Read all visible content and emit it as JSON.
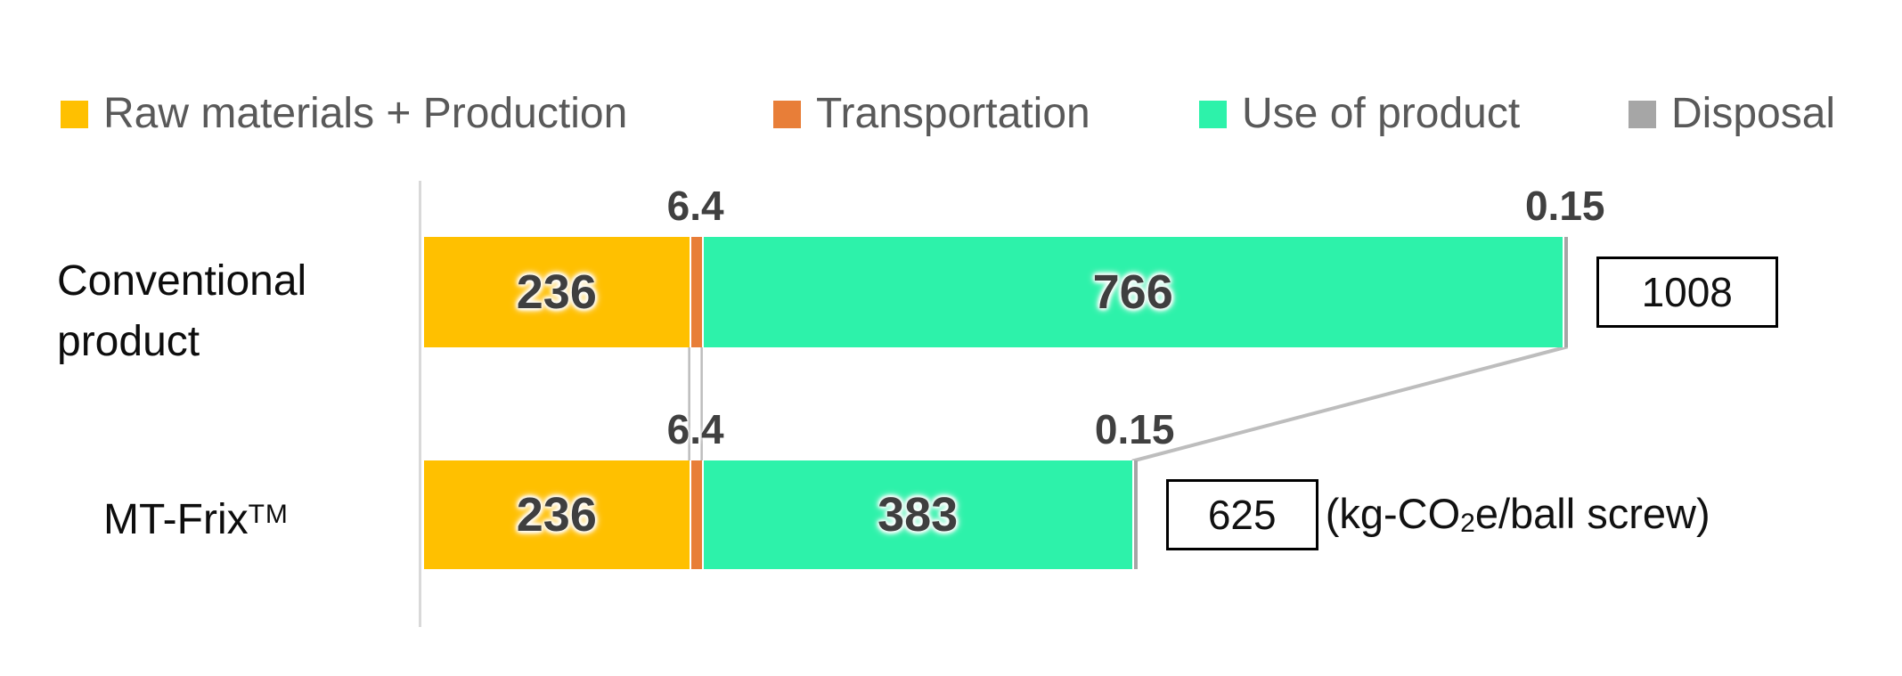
{
  "chart_data": {
    "type": "bar",
    "variant": "horizontal-stacked",
    "title": "",
    "categories": [
      "Conventional product",
      "MT-Frix™"
    ],
    "series": [
      {
        "name": "Raw materials + Production",
        "color": "#FFC000",
        "values": [
          236,
          236
        ]
      },
      {
        "name": "Transportation",
        "color": "#E87E38",
        "values": [
          6.4,
          6.4
        ]
      },
      {
        "name": "Use of product",
        "color": "#2DF2AA",
        "values": [
          766,
          383
        ]
      },
      {
        "name": "Disposal",
        "color": "#A6A6A6",
        "values": [
          0.15,
          0.15
        ]
      }
    ],
    "totals": [
      1008,
      625
    ],
    "unit": "kg-CO2e/ball screw",
    "value_axis": {
      "origin": 0,
      "max": 1008.55,
      "gridlines": false
    },
    "legend_position": "top"
  },
  "labels": {
    "row1": "Conventional product",
    "row2_base": "MT-Frix",
    "row2_sup": "TM",
    "unit_prefix": "(kg-CO",
    "unit_sub": "2",
    "unit_suffix": "e/ball screw)"
  },
  "colors": {
    "axis_line": "#D9D9D9",
    "series_connector": "#BDBDBD",
    "bar_value_text": "#3F3F3F",
    "callout_text": "#404040",
    "legend_text": "#595959",
    "box_border": "#000000"
  }
}
